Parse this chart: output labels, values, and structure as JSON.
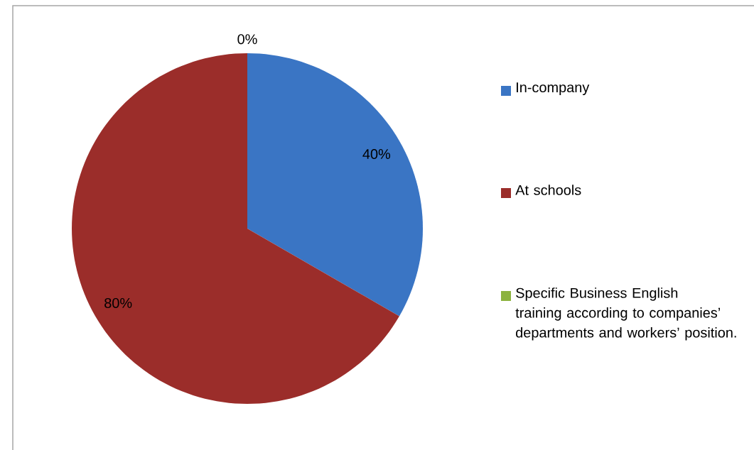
{
  "chart_data": {
    "type": "pie",
    "categories": [
      "In-company",
      "At schools",
      "Specific Business English training according to companies’ departments and workers’ position."
    ],
    "values": [
      40,
      80,
      0
    ],
    "value_labels": [
      "40%",
      "80%",
      "0%"
    ],
    "colors": [
      "#3a75c4",
      "#9b2d2a",
      "#8cb33f"
    ],
    "legend": "right"
  }
}
